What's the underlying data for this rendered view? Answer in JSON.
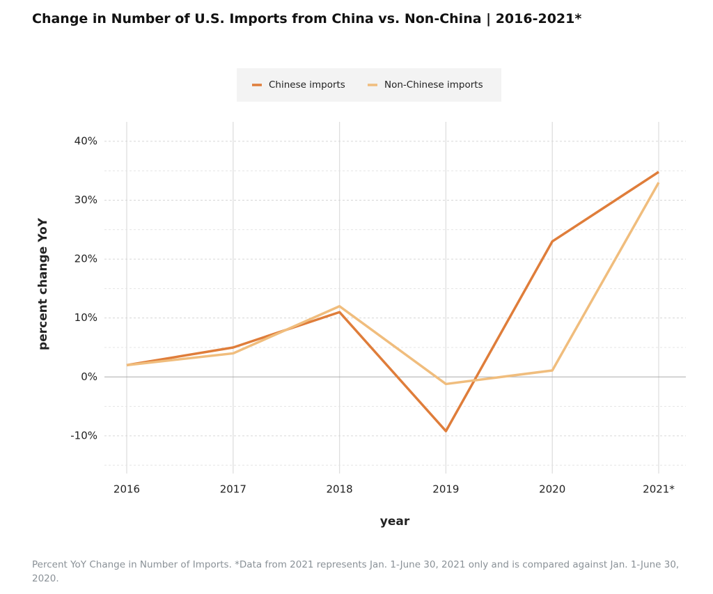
{
  "chart_data": {
    "type": "line",
    "title": "Change in Number of U.S. Imports from China vs. Non-China | 2016-2021*",
    "x_label": "year",
    "y_label": "percent change YoY",
    "footnote": "Percent YoY Change in Number of Imports. *Data from 2021 represents Jan. 1-June 30, 2021 only and is compared against Jan. 1-June 30, 2020.",
    "categories": [
      "2016",
      "2017",
      "2018",
      "2019",
      "2020",
      "2021*"
    ],
    "series": [
      {
        "name": "Chinese imports",
        "color": "#df7d3a",
        "values": [
          2,
          5,
          11,
          -9.2,
          23,
          34.8
        ]
      },
      {
        "name": "Non-Chinese imports",
        "color": "#f0bd7d",
        "values": [
          2,
          4,
          12,
          -1.2,
          1.1,
          33
        ]
      }
    ],
    "ylim": [
      -16.4,
      43.3
    ],
    "yticks": [
      {
        "value": -10,
        "label": "-10%"
      },
      {
        "value": 0,
        "label": "0%"
      },
      {
        "value": 10,
        "label": "10%"
      },
      {
        "value": 20,
        "label": "20%"
      },
      {
        "value": 30,
        "label": "30%"
      },
      {
        "value": 40,
        "label": "40%"
      }
    ],
    "grid": true,
    "legend": "top"
  }
}
